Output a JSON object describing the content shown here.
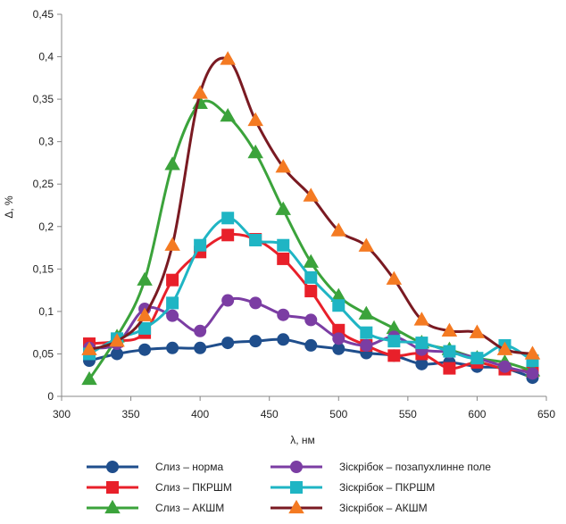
{
  "chart_data": {
    "type": "line",
    "title": "",
    "xlabel": "λ, нм",
    "ylabel": "Δ, %",
    "xlim": [
      300,
      650
    ],
    "ylim": [
      0,
      0.45
    ],
    "xticks": [
      300,
      350,
      400,
      450,
      500,
      550,
      600,
      650
    ],
    "yticks": [
      0,
      0.05,
      0.1,
      0.15,
      0.2,
      0.25,
      0.3,
      0.35,
      0.4,
      0.45
    ],
    "xtick_labels": [
      "300",
      "350",
      "400",
      "450",
      "500",
      "550",
      "600",
      "650"
    ],
    "ytick_labels": [
      "0",
      "0,05",
      "0,1",
      "0,15",
      "0,2",
      "0,25",
      "0,3",
      "0,35",
      "0,4",
      "0,45"
    ],
    "grid": false,
    "legend_position": "bottom",
    "x": [
      320,
      340,
      360,
      380,
      400,
      420,
      440,
      460,
      480,
      500,
      520,
      540,
      560,
      580,
      600,
      620,
      640
    ],
    "series": [
      {
        "name": "Слиз – норма",
        "color": "#1F4E8C",
        "marker": "circle",
        "values": [
          0.042,
          0.05,
          0.055,
          0.057,
          0.057,
          0.063,
          0.065,
          0.067,
          0.06,
          0.056,
          0.051,
          0.048,
          0.038,
          0.04,
          0.035,
          0.033,
          0.022
        ]
      },
      {
        "name": "Слиз – ПКРШМ",
        "color": "#E8202A",
        "marker": "square",
        "values": [
          0.062,
          0.065,
          0.075,
          0.137,
          0.17,
          0.19,
          0.185,
          0.162,
          0.124,
          0.078,
          0.06,
          0.048,
          0.05,
          0.033,
          0.04,
          0.032,
          0.03
        ]
      },
      {
        "name": "Слиз – АКШМ",
        "color": "#3BA33B",
        "marker": "triangle",
        "values": [
          0.02,
          0.07,
          0.137,
          0.273,
          0.345,
          0.33,
          0.287,
          0.22,
          0.158,
          0.118,
          0.097,
          0.08,
          0.063,
          0.055,
          0.045,
          0.04,
          0.03
        ]
      },
      {
        "name": "Зіскрібок – позапухлинне поле",
        "color": "#7B3DA3",
        "marker": "circle",
        "values": [
          0.057,
          0.062,
          0.103,
          0.095,
          0.077,
          0.113,
          0.11,
          0.096,
          0.09,
          0.068,
          0.06,
          0.07,
          0.055,
          0.052,
          0.045,
          0.035,
          0.027
        ]
      },
      {
        "name": "Зіскрібок – ПКРШМ",
        "color": "#1FB5C4",
        "marker": "square",
        "values": [
          0.05,
          0.068,
          0.08,
          0.11,
          0.178,
          0.21,
          0.184,
          0.178,
          0.14,
          0.107,
          0.075,
          0.065,
          0.063,
          0.053,
          0.045,
          0.06,
          0.042
        ]
      },
      {
        "name": "Зіскрібок – АКШМ",
        "color": "#7A1A22",
        "marker": "triangle",
        "marker_color": "#F47A22",
        "values": [
          0.055,
          0.065,
          0.095,
          0.178,
          0.357,
          0.397,
          0.325,
          0.27,
          0.236,
          0.195,
          0.177,
          0.138,
          0.09,
          0.077,
          0.075,
          0.055,
          0.05
        ]
      }
    ]
  }
}
